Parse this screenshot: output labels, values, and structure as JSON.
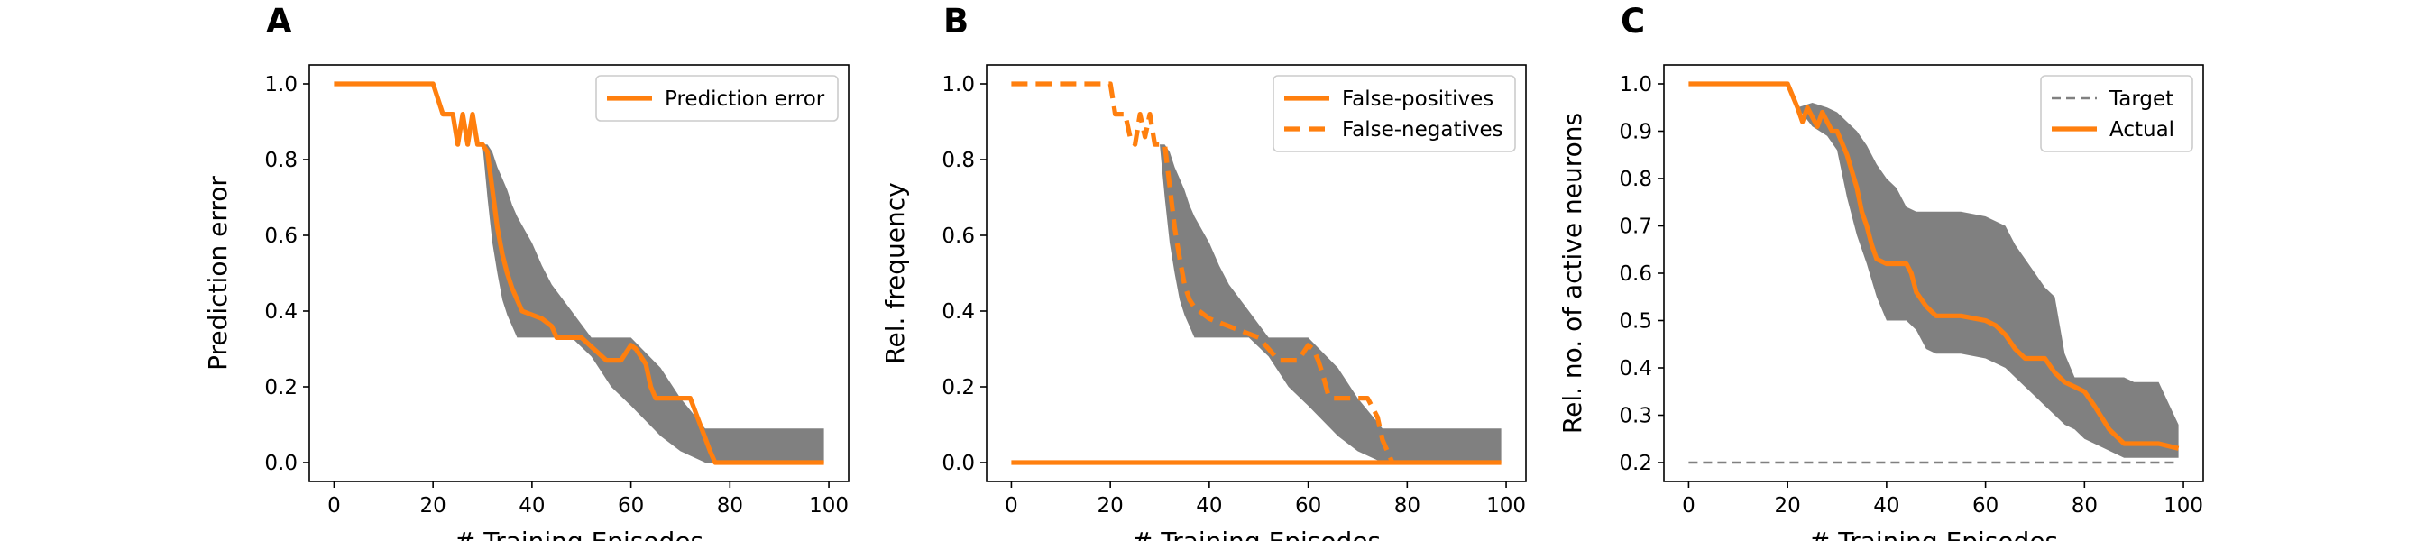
{
  "chart_data": [
    {
      "panel": "A",
      "type": "line",
      "xlabel": "# Training Episodes",
      "ylabel": "Prediction error",
      "xlim": [
        -5,
        104
      ],
      "ylim": [
        -0.05,
        1.05
      ],
      "xticks": [
        0,
        20,
        40,
        60,
        80,
        100
      ],
      "yticks": [
        0.0,
        0.2,
        0.4,
        0.6,
        0.8,
        1.0
      ],
      "tick_decimals": 1,
      "legend": "upper right",
      "series": [
        {
          "name": "Prediction error",
          "color": "#ff7f0e",
          "style": "solid",
          "x": [
            0,
            20,
            22,
            24,
            25,
            26,
            27,
            28,
            29,
            30,
            31,
            32,
            33,
            34,
            35,
            36,
            37,
            38,
            40,
            42,
            44,
            45,
            48,
            50,
            55,
            58,
            60,
            61,
            62,
            63,
            64,
            65,
            70,
            72,
            74,
            76,
            77,
            99
          ],
          "y": [
            1.0,
            1.0,
            0.92,
            0.92,
            0.84,
            0.92,
            0.84,
            0.92,
            0.84,
            0.84,
            0.82,
            0.72,
            0.62,
            0.55,
            0.5,
            0.46,
            0.43,
            0.4,
            0.39,
            0.38,
            0.36,
            0.33,
            0.33,
            0.33,
            0.27,
            0.27,
            0.31,
            0.3,
            0.28,
            0.26,
            0.2,
            0.17,
            0.17,
            0.17,
            0.1,
            0.03,
            0.0,
            0.0
          ]
        }
      ],
      "band": {
        "color": "#808080",
        "x": [
          30,
          31,
          32,
          33,
          34,
          35,
          36,
          37,
          40,
          42,
          44,
          48,
          52,
          56,
          60,
          66,
          70,
          75,
          78,
          99
        ],
        "lower": [
          0.84,
          0.7,
          0.58,
          0.5,
          0.43,
          0.39,
          0.36,
          0.33,
          0.33,
          0.33,
          0.33,
          0.33,
          0.28,
          0.2,
          0.15,
          0.07,
          0.03,
          0.0,
          0.0,
          0.0
        ],
        "upper": [
          0.84,
          0.84,
          0.82,
          0.78,
          0.75,
          0.72,
          0.68,
          0.65,
          0.58,
          0.52,
          0.47,
          0.4,
          0.33,
          0.33,
          0.33,
          0.25,
          0.17,
          0.09,
          0.09,
          0.09
        ]
      }
    },
    {
      "panel": "B",
      "type": "line",
      "xlabel": "# Training Episodes",
      "ylabel": "Rel. frequency",
      "xlim": [
        -5,
        104
      ],
      "ylim": [
        -0.05,
        1.05
      ],
      "xticks": [
        0,
        20,
        40,
        60,
        80,
        100
      ],
      "yticks": [
        0.0,
        0.2,
        0.4,
        0.6,
        0.8,
        1.0
      ],
      "tick_decimals": 1,
      "legend": "upper right",
      "series": [
        {
          "name": "False-positives",
          "color": "#ff7f0e",
          "style": "solid",
          "x": [
            0,
            99
          ],
          "y": [
            0.0,
            0.0
          ]
        },
        {
          "name": "False-negatives",
          "color": "#ff7f0e",
          "style": "dashed",
          "x": [
            0,
            20,
            21,
            22,
            23,
            24,
            25,
            26,
            27,
            28,
            29,
            30,
            31,
            32,
            33,
            34,
            35,
            36,
            37,
            38,
            40,
            42,
            44,
            46,
            48,
            50,
            52,
            54,
            56,
            58,
            60,
            61,
            62,
            63,
            64,
            65,
            70,
            72,
            74,
            75,
            76,
            77
          ],
          "y": [
            1.0,
            1.0,
            0.92,
            0.92,
            0.92,
            0.86,
            0.84,
            0.92,
            0.86,
            0.92,
            0.84,
            0.84,
            0.84,
            0.73,
            0.62,
            0.54,
            0.47,
            0.43,
            0.41,
            0.4,
            0.38,
            0.37,
            0.36,
            0.35,
            0.34,
            0.33,
            0.3,
            0.27,
            0.27,
            0.27,
            0.31,
            0.3,
            0.27,
            0.23,
            0.18,
            0.17,
            0.17,
            0.17,
            0.12,
            0.06,
            0.03,
            0.0
          ]
        }
      ],
      "band": {
        "color": "#808080",
        "x": [
          30,
          31,
          32,
          33,
          34,
          35,
          36,
          37,
          40,
          42,
          44,
          48,
          52,
          56,
          60,
          66,
          70,
          75,
          78,
          99
        ],
        "lower": [
          0.84,
          0.7,
          0.58,
          0.5,
          0.43,
          0.39,
          0.36,
          0.33,
          0.33,
          0.33,
          0.33,
          0.33,
          0.28,
          0.2,
          0.15,
          0.07,
          0.03,
          0.0,
          0.0,
          0.0
        ],
        "upper": [
          0.84,
          0.84,
          0.82,
          0.78,
          0.75,
          0.72,
          0.68,
          0.65,
          0.58,
          0.52,
          0.47,
          0.4,
          0.33,
          0.33,
          0.33,
          0.25,
          0.17,
          0.09,
          0.09,
          0.09
        ]
      }
    },
    {
      "panel": "C",
      "type": "line",
      "xlabel": "# Training Episodes",
      "ylabel": "Rel. no. of active neurons",
      "xlim": [
        -5,
        104
      ],
      "ylim": [
        0.16,
        1.04
      ],
      "xticks": [
        0,
        20,
        40,
        60,
        80,
        100
      ],
      "yticks": [
        0.2,
        0.3,
        0.4,
        0.5,
        0.6,
        0.7,
        0.8,
        0.9,
        1.0
      ],
      "tick_decimals": 1,
      "legend": "upper right",
      "series": [
        {
          "name": "Target",
          "color": "#808080",
          "style": "dashed",
          "x": [
            0,
            99
          ],
          "y": [
            0.2,
            0.2
          ]
        },
        {
          "name": "Actual",
          "color": "#ff7f0e",
          "style": "solid",
          "x": [
            0,
            20,
            22,
            23,
            24,
            25,
            26,
            27,
            28,
            29,
            30,
            32,
            34,
            35,
            36,
            37,
            38,
            40,
            42,
            44,
            45,
            46,
            48,
            50,
            55,
            60,
            62,
            64,
            66,
            68,
            70,
            72,
            74,
            76,
            78,
            80,
            82,
            85,
            88,
            95,
            99
          ],
          "y": [
            1.0,
            1.0,
            0.95,
            0.92,
            0.95,
            0.93,
            0.91,
            0.94,
            0.92,
            0.9,
            0.9,
            0.85,
            0.78,
            0.73,
            0.7,
            0.66,
            0.63,
            0.62,
            0.62,
            0.62,
            0.6,
            0.56,
            0.53,
            0.51,
            0.51,
            0.5,
            0.49,
            0.47,
            0.44,
            0.42,
            0.42,
            0.42,
            0.39,
            0.37,
            0.36,
            0.35,
            0.32,
            0.27,
            0.24,
            0.24,
            0.23
          ]
        }
      ],
      "band": {
        "color": "#808080",
        "x": [
          20,
          22,
          25,
          28,
          30,
          32,
          34,
          36,
          38,
          40,
          42,
          44,
          46,
          48,
          50,
          55,
          60,
          62,
          64,
          66,
          70,
          72,
          74,
          76,
          78,
          80,
          84,
          88,
          90,
          95,
          99
        ],
        "lower": [
          1.0,
          0.95,
          0.91,
          0.89,
          0.86,
          0.76,
          0.68,
          0.62,
          0.55,
          0.5,
          0.5,
          0.5,
          0.48,
          0.44,
          0.43,
          0.43,
          0.42,
          0.41,
          0.4,
          0.38,
          0.34,
          0.32,
          0.3,
          0.28,
          0.27,
          0.25,
          0.23,
          0.21,
          0.21,
          0.21,
          0.21
        ],
        "upper": [
          1.0,
          0.95,
          0.96,
          0.95,
          0.94,
          0.92,
          0.9,
          0.87,
          0.83,
          0.8,
          0.78,
          0.74,
          0.73,
          0.73,
          0.73,
          0.73,
          0.72,
          0.71,
          0.7,
          0.66,
          0.6,
          0.57,
          0.55,
          0.43,
          0.38,
          0.38,
          0.38,
          0.38,
          0.37,
          0.37,
          0.28
        ]
      }
    }
  ]
}
